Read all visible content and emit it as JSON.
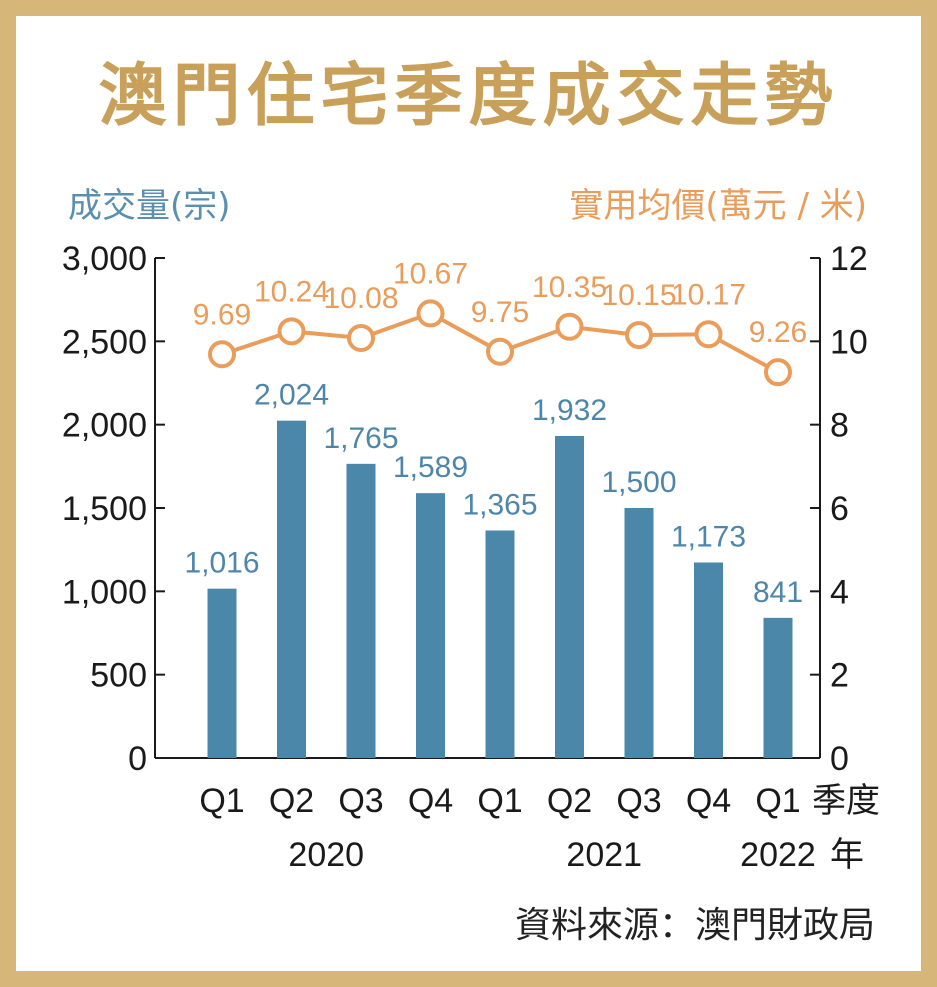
{
  "title": "澳門住宅季度成交走勢",
  "source": "資料來源：澳門財政局",
  "colors": {
    "border": "#d6b679",
    "title": "#c9a05a",
    "bar": "#4b87a8",
    "bar_label": "#4e86a9",
    "line": "#ea9c5a",
    "axis": "#1a1a1a"
  },
  "chart_data": {
    "type": "bar",
    "title": "澳門住宅季度成交走勢",
    "ylabel_left": "成交量(宗)",
    "ylabel_right": "實用均價(萬元 / 米)",
    "xlabel": "季度",
    "year_axis_label": "年",
    "categories": [
      "Q1",
      "Q2",
      "Q3",
      "Q4",
      "Q1",
      "Q2",
      "Q3",
      "Q4",
      "Q1"
    ],
    "years": [
      {
        "label": "2020",
        "span": [
          0,
          3
        ]
      },
      {
        "label": "2021",
        "span": [
          4,
          7
        ]
      },
      {
        "label": "2022",
        "span": [
          8,
          8
        ]
      }
    ],
    "series": [
      {
        "type": "bar",
        "axis": "left",
        "values": [
          1016,
          2024,
          1765,
          1589,
          1365,
          1932,
          1500,
          1173,
          841
        ]
      },
      {
        "type": "line",
        "axis": "right",
        "values": [
          9.69,
          10.24,
          10.08,
          10.67,
          9.75,
          10.35,
          10.15,
          10.17,
          9.26
        ]
      }
    ],
    "ylim_left": [
      0,
      3000
    ],
    "yticks_left": [
      0,
      500,
      1000,
      1500,
      2000,
      2500,
      3000
    ],
    "ylim_right": [
      0,
      12
    ],
    "yticks_right": [
      0,
      2,
      4,
      6,
      8,
      10,
      12
    ],
    "grid": false,
    "legend": "none"
  }
}
